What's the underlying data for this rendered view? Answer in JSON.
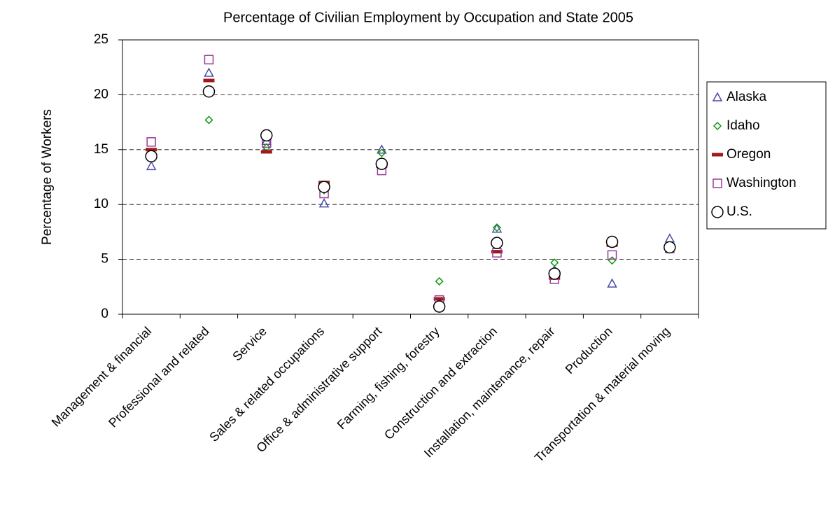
{
  "chart_data": {
    "type": "scatter",
    "title": "Percentage of Civilian Employment by Occupation and State 2005",
    "y_label": "Percentage of Workers",
    "categories": [
      "Management & financial",
      "Professional and related",
      "Service",
      "Sales & related occupations",
      "Office & administrative support",
      "Farming, fishing, forestry",
      "Construction and extraction",
      "Installation, maintenance, repair",
      "Production",
      "Transportation & material moving"
    ],
    "ylim": [
      0,
      25
    ],
    "yticks": [
      0,
      5,
      10,
      15,
      20,
      25
    ],
    "grid": true,
    "legend": "right",
    "series": [
      {
        "name": "Alaska",
        "color": "#4a4aa8",
        "marker": "triangle",
        "values": [
          13.5,
          22.0,
          15.8,
          10.1,
          15.0,
          0.8,
          7.8,
          4.0,
          2.8,
          6.9
        ]
      },
      {
        "name": "Idaho",
        "color": "#119911",
        "marker": "diamond",
        "values": [
          14.7,
          17.7,
          15.2,
          11.3,
          14.7,
          3.0,
          7.9,
          4.7,
          4.9,
          6.2
        ]
      },
      {
        "name": "Oregon",
        "color": "#a01818",
        "marker": "dash",
        "values": [
          15.0,
          21.3,
          14.8,
          12.0,
          13.5,
          1.4,
          5.7,
          3.3,
          6.3,
          6.1
        ]
      },
      {
        "name": "Washington",
        "color": "#9a3a9a",
        "marker": "square",
        "values": [
          15.7,
          23.2,
          15.6,
          11.0,
          13.1,
          1.3,
          5.6,
          3.2,
          5.4,
          6.0
        ]
      },
      {
        "name": "U.S.",
        "color": "#000000",
        "marker": "circle",
        "values": [
          14.4,
          20.3,
          16.3,
          11.6,
          13.7,
          0.7,
          6.5,
          3.7,
          6.6,
          6.1
        ]
      }
    ]
  }
}
